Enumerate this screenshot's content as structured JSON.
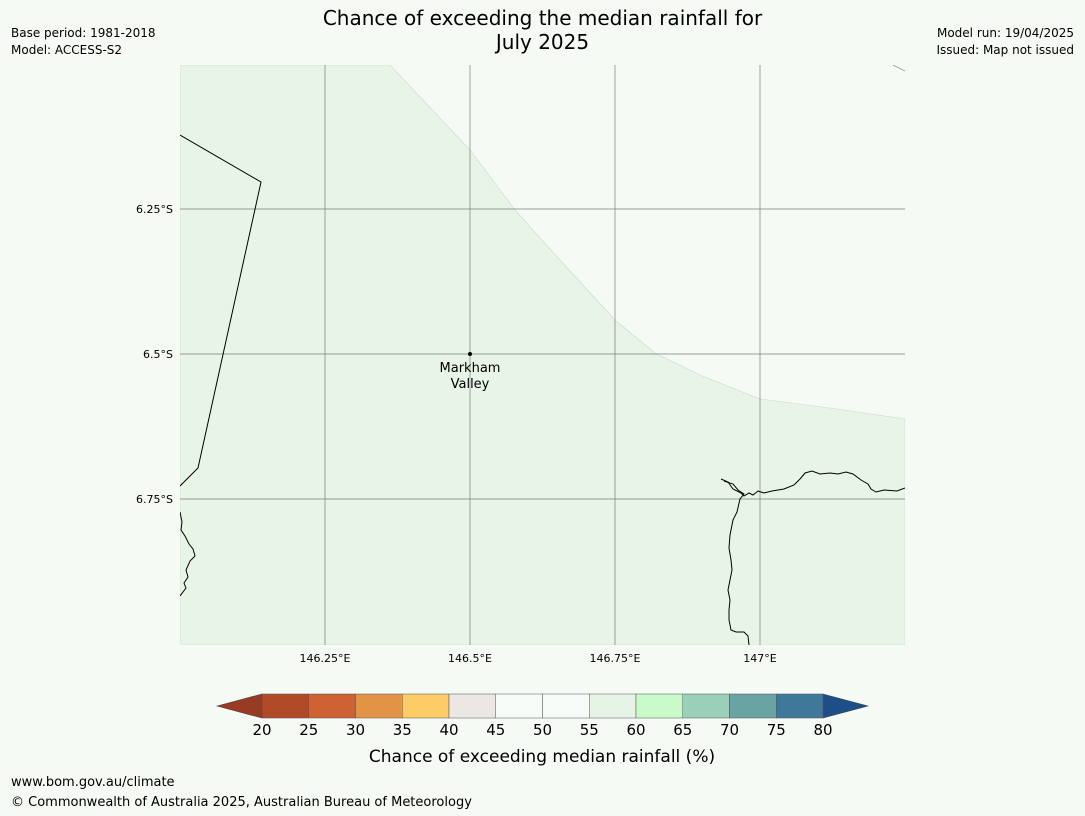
{
  "title": {
    "line1": "Chance of exceeding the median rainfall for",
    "line2": "July 2025"
  },
  "meta_left": {
    "base_period": "Base period: 1981-2018",
    "model": "Model: ACCESS-S2"
  },
  "meta_right": {
    "model_run": "Model run: 19/04/2025",
    "issued": "Issued: Map not issued"
  },
  "map": {
    "lat_labels": [
      "6.25°S",
      "6.5°S",
      "6.75°S"
    ],
    "lon_labels": [
      "146.25°E",
      "146.5°E",
      "146.75°E",
      "147°E"
    ],
    "place": {
      "name_line1": "Markham",
      "name_line2": "Valley"
    },
    "colors": {
      "land_fill": "#e8f4e8",
      "background": "#f5faf5",
      "coast": "#000000",
      "grid": "#555555"
    }
  },
  "colorbar": {
    "ticks": [
      "20",
      "25",
      "30",
      "35",
      "40",
      "45",
      "50",
      "55",
      "60",
      "65",
      "70",
      "75",
      "80"
    ],
    "label": "Chance of exceeding median rainfall (%)",
    "low_extend_color": "#993a22",
    "high_extend_color": "#1d4e89",
    "bins": [
      "#b14a26",
      "#cd6233",
      "#e29444",
      "#fdcc66",
      "#ebe8e4",
      "#f7fbf7",
      "#f7fbf7",
      "#e6f4e6",
      "#c9fac9",
      "#9bd0b8",
      "#6aa3a4",
      "#3f7899"
    ]
  },
  "footer": {
    "url": "www.bom.gov.au/climate",
    "copyright": "© Commonwealth of Australia 2025, Australian Bureau of Meteorology"
  }
}
